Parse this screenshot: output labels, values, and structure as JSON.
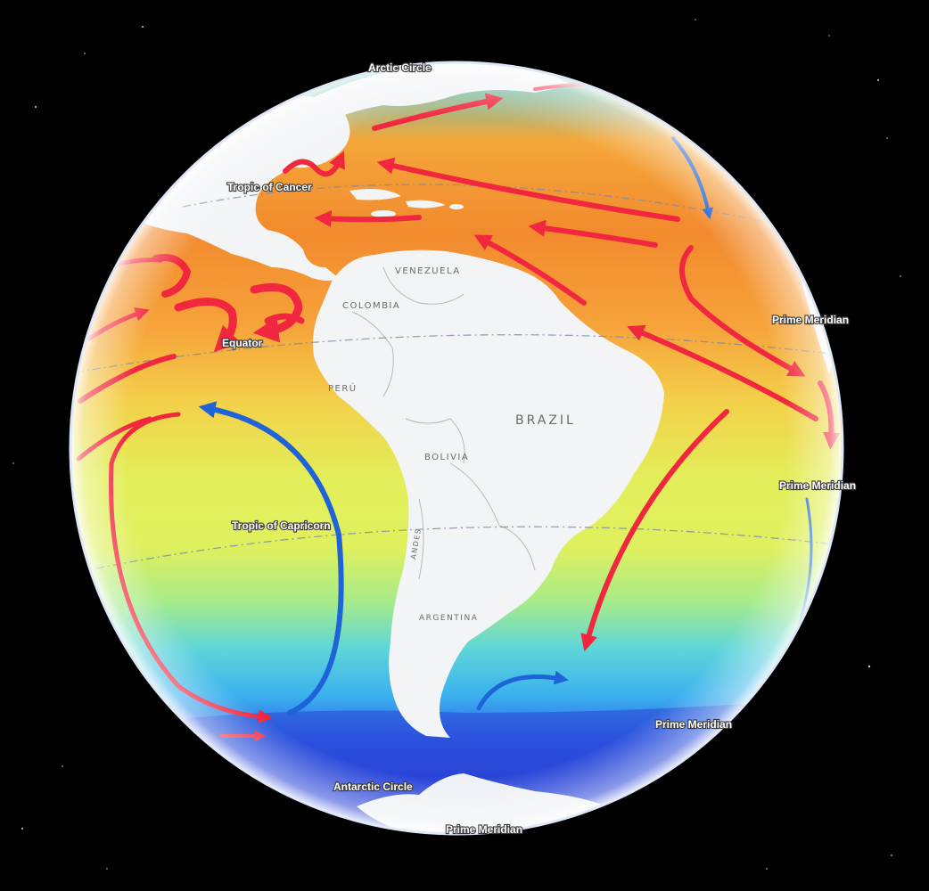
{
  "colors": {
    "space": "#000000",
    "warm_current": "#f1273f",
    "cold_current": "#1f63d8",
    "land": "#f3f4f6",
    "antarctic_ice": "#eef1f5"
  },
  "labels": {
    "arctic_circle": "Arctic Circle",
    "tropic_cancer": "Tropic of Cancer",
    "equator": "Equator",
    "tropic_capricorn": "Tropic of Capricorn",
    "antarctic_circle": "Antarctic Circle",
    "prime_meridian": "Prime Meridian"
  },
  "countries": {
    "venezuela": "VENEZUELA",
    "colombia": "COLOMBIA",
    "peru": "PERÚ",
    "brazil": "BRAZIL",
    "bolivia": "BOLIVIA",
    "andes": "ANDES",
    "argentina": "ARGENTINA"
  }
}
